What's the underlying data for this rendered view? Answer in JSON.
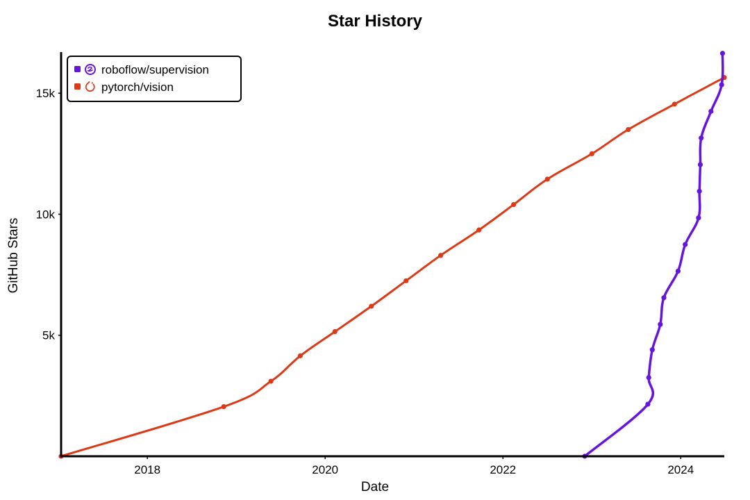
{
  "chart_data": {
    "type": "line",
    "title": "Star History",
    "xlabel": "Date",
    "ylabel": "GitHub Stars",
    "xlim": [
      2017.03,
      2024.49
    ],
    "ylim": [
      0,
      16700
    ],
    "x_ticks": [
      {
        "value": 2018,
        "label": "2018"
      },
      {
        "value": 2020,
        "label": "2020"
      },
      {
        "value": 2022,
        "label": "2022"
      },
      {
        "value": 2024,
        "label": "2024"
      }
    ],
    "y_ticks": [
      {
        "value": 5000,
        "label": "5k"
      },
      {
        "value": 10000,
        "label": "10k"
      },
      {
        "value": 15000,
        "label": "15k"
      }
    ],
    "legend_position": "top-left",
    "series": [
      {
        "name": "roboflow/supervision",
        "color": "#6515dd",
        "icon": "roboflow-logo-icon",
        "points": [
          [
            2022.92,
            0
          ],
          [
            2023.63,
            2150
          ],
          [
            2023.64,
            3250
          ],
          [
            2023.68,
            4400
          ],
          [
            2023.77,
            5450
          ],
          [
            2023.81,
            6550
          ],
          [
            2023.97,
            7650
          ],
          [
            2024.05,
            8750
          ],
          [
            2024.2,
            9850
          ],
          [
            2024.21,
            10950
          ],
          [
            2024.22,
            12050
          ],
          [
            2024.23,
            13150
          ],
          [
            2024.34,
            14250
          ],
          [
            2024.46,
            15350
          ],
          [
            2024.47,
            16650
          ]
        ]
      },
      {
        "name": "pytorch/vision",
        "color": "#dc3a17",
        "icon": "pytorch-logo-icon",
        "points": [
          [
            2017.03,
            0
          ],
          [
            2018.86,
            2050
          ],
          [
            2019.39,
            3100
          ],
          [
            2019.72,
            4150
          ],
          [
            2020.11,
            5150
          ],
          [
            2020.52,
            6200
          ],
          [
            2020.91,
            7250
          ],
          [
            2021.3,
            8300
          ],
          [
            2021.73,
            9350
          ],
          [
            2022.12,
            10400
          ],
          [
            2022.5,
            11450
          ],
          [
            2023.0,
            12500
          ],
          [
            2023.41,
            13500
          ],
          [
            2023.93,
            14550
          ],
          [
            2024.49,
            15650
          ]
        ]
      }
    ]
  }
}
